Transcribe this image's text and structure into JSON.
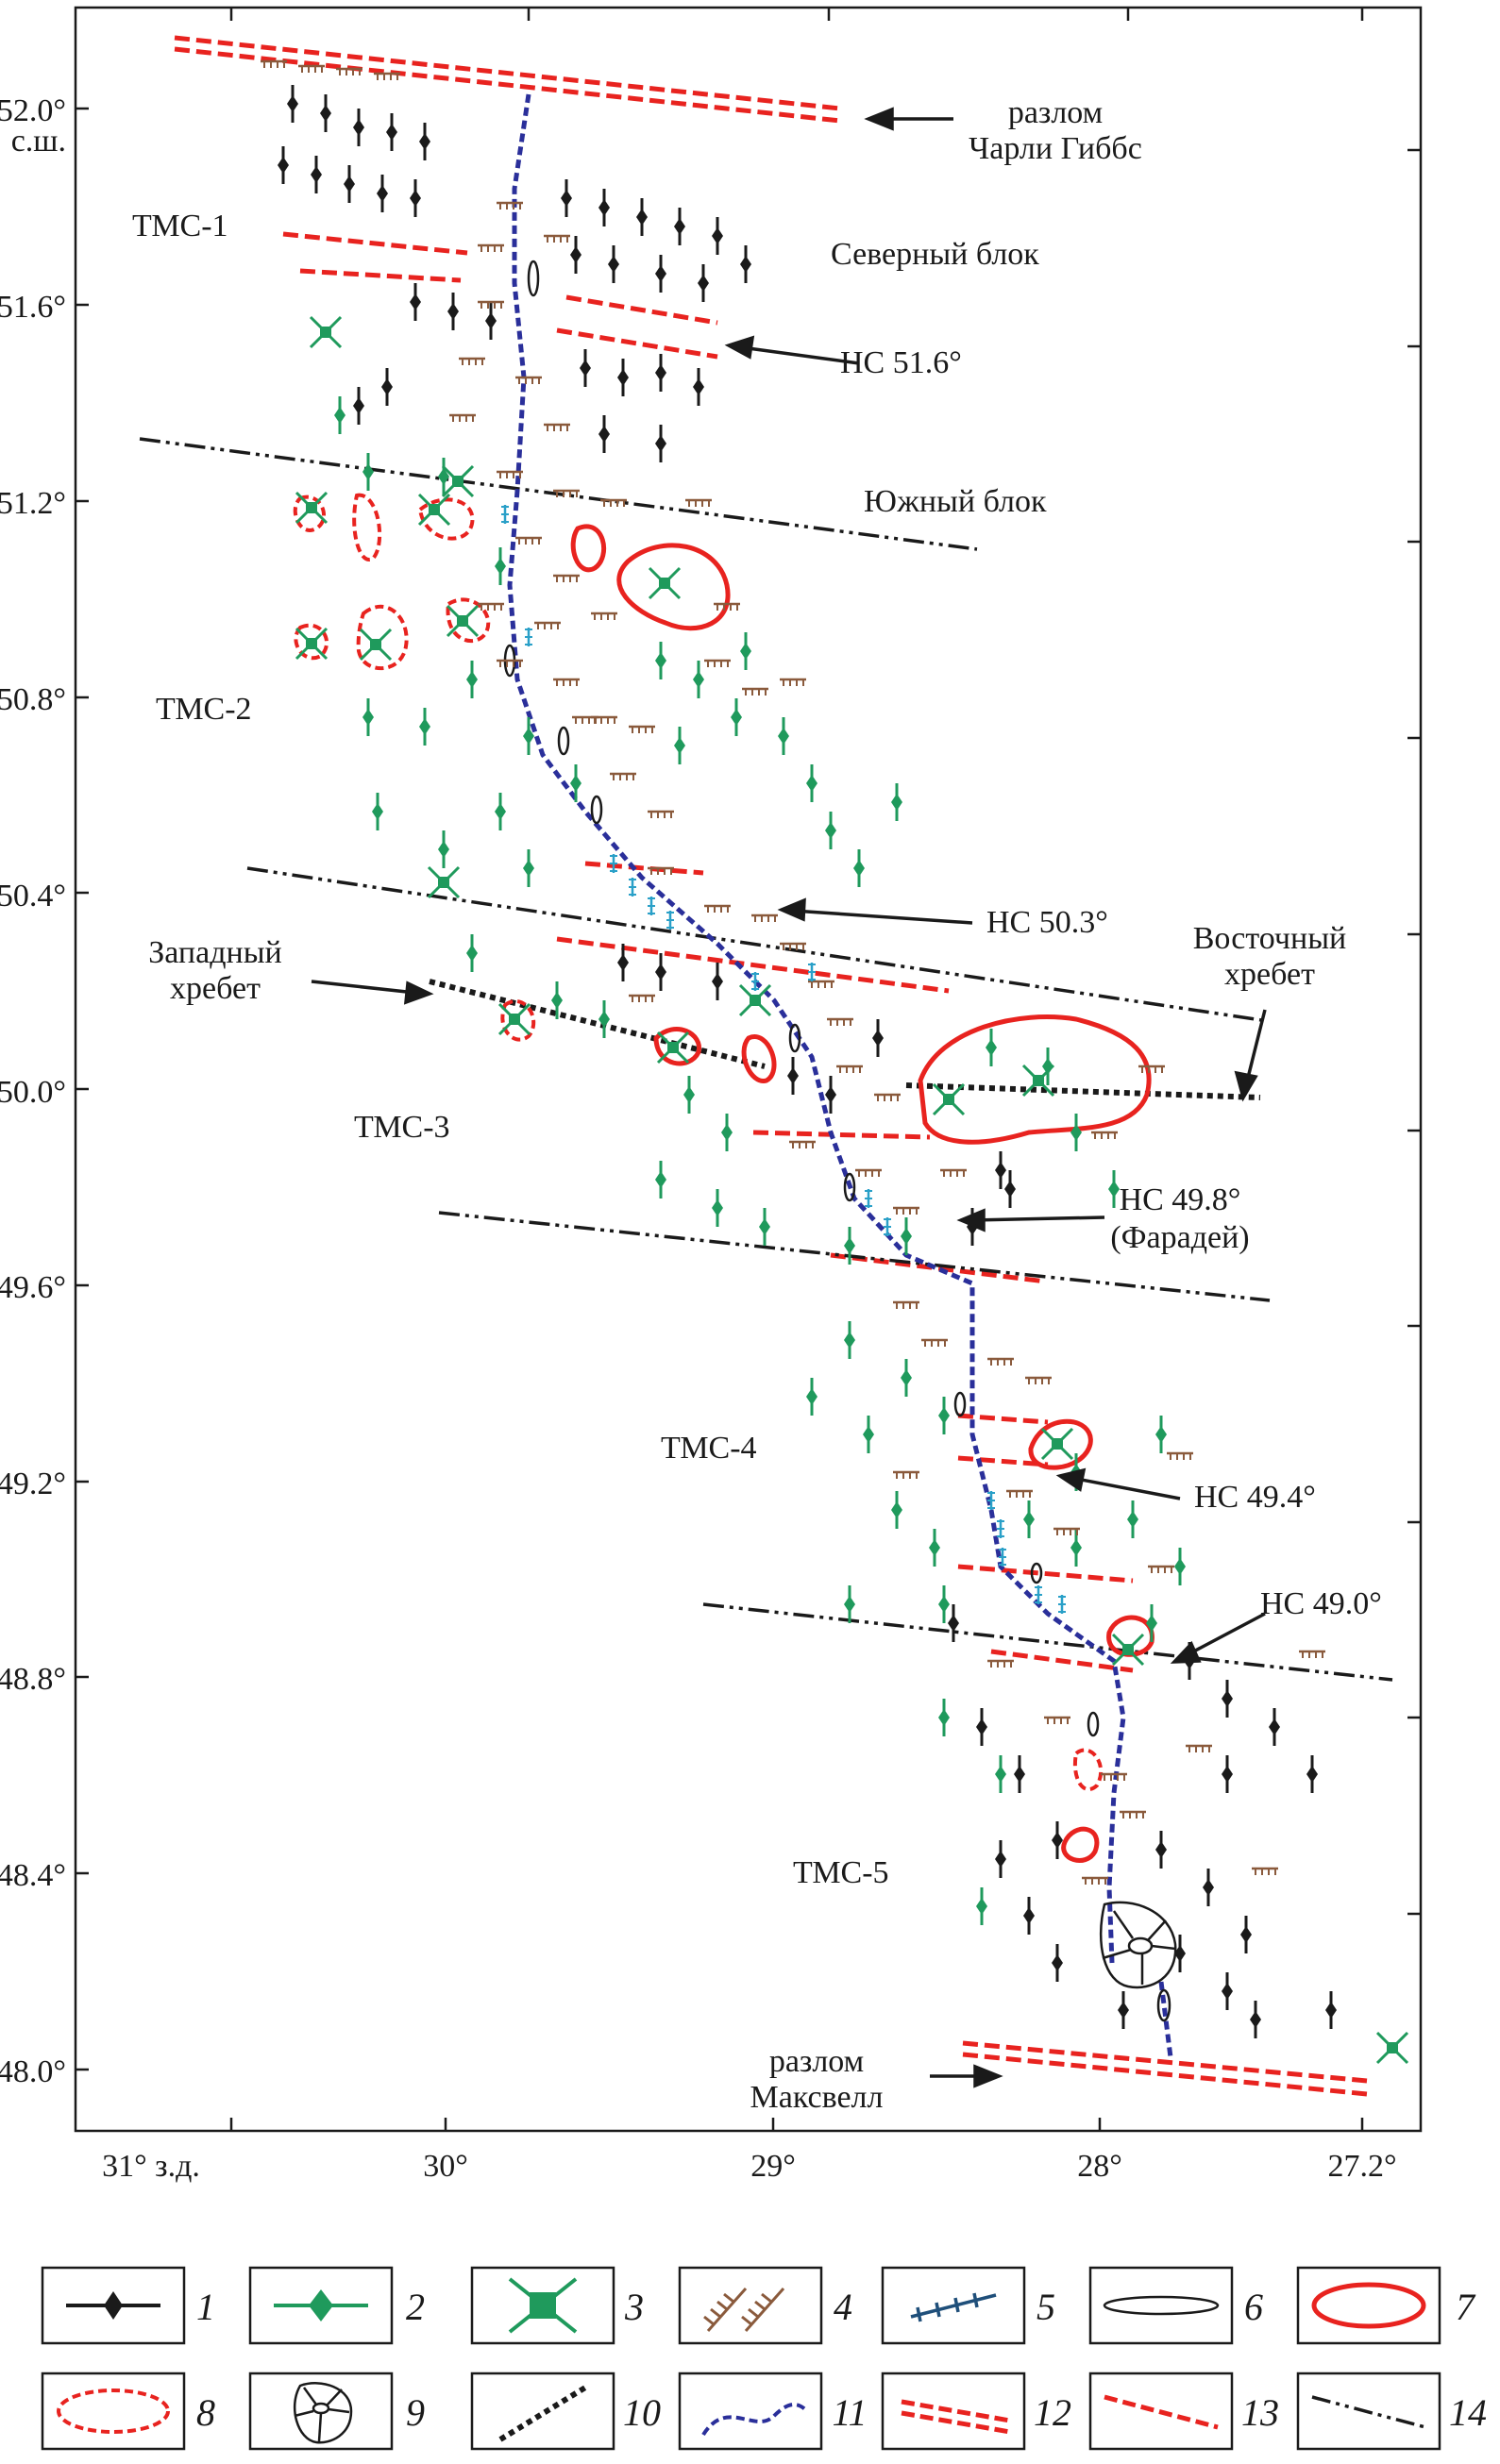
{
  "colors": {
    "black": "#1a1a1a",
    "red": "#e8231f",
    "green": "#1f9a5c",
    "brown": "#8a5a3c",
    "blue": "#2a2f9a",
    "cyan": "#2aa0c8"
  },
  "axes": {
    "y_ticks": [
      "52.0°",
      "51.6°",
      "51.2°",
      "50.8°",
      "50.4°",
      "50.0°",
      "49.6°",
      "49.2°",
      "48.8°",
      "48.4°",
      "48.0°"
    ],
    "y_unit": "с.ш.",
    "x_ticks": [
      "31° з.д.",
      "30°",
      "29°",
      "28°",
      "27.2°"
    ]
  },
  "labels": {
    "charlie_gibbs": [
      "разлом",
      "Чарли Гиббс"
    ],
    "northern_block": "Северный блок",
    "southern_block": "Южный блок",
    "ns516": "НС 51.6°",
    "ns503": "НС 50.3°",
    "ns498": [
      "НС 49.8°",
      "(Фарадей)"
    ],
    "ns494": "НС 49.4°",
    "ns490": "НС 49.0°",
    "western_ridge": [
      "Западный",
      "хребет"
    ],
    "eastern_ridge": [
      "Восточный",
      "хребет"
    ],
    "maxwell": [
      "разлом",
      "Максвелл"
    ],
    "tms1": "ТМС-1",
    "tms2": "ТМС-2",
    "tms3": "ТМС-3",
    "tms4": "ТМС-4",
    "tms5": "ТМС-5"
  },
  "legend": [
    {
      "num": "1",
      "icon": "black-diamond-line-icon"
    },
    {
      "num": "2",
      "icon": "green-diamond-line-icon"
    },
    {
      "num": "3",
      "icon": "green-star-icon"
    },
    {
      "num": "4",
      "icon": "brown-hachure-icon"
    },
    {
      "num": "5",
      "icon": "cyan-ticked-line-icon"
    },
    {
      "num": "6",
      "icon": "black-ellipse-icon"
    },
    {
      "num": "7",
      "icon": "red-solid-contour-icon"
    },
    {
      "num": "8",
      "icon": "red-dashed-contour-icon"
    },
    {
      "num": "9",
      "icon": "caldera-icon"
    },
    {
      "num": "10",
      "icon": "black-dotted-line-icon"
    },
    {
      "num": "11",
      "icon": "blue-dashed-axis-icon"
    },
    {
      "num": "12",
      "icon": "red-double-dashed-line-icon"
    },
    {
      "num": "13",
      "icon": "red-dashed-line-icon"
    },
    {
      "num": "14",
      "icon": "dash-dot-line-icon"
    }
  ]
}
